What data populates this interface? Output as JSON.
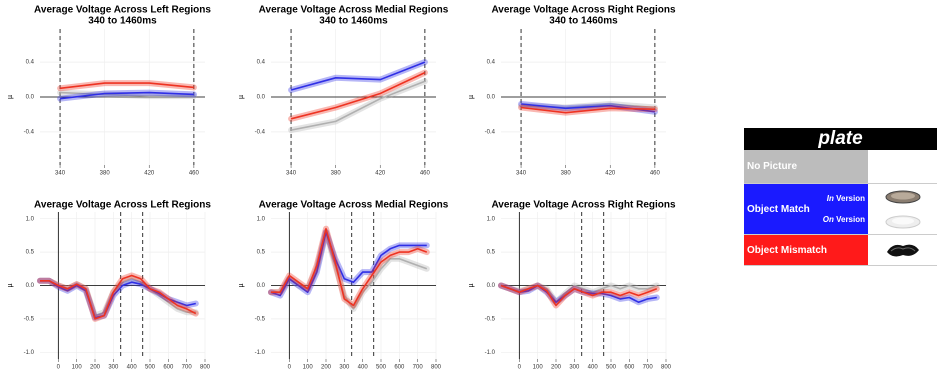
{
  "chart_data": [
    {
      "type": "line",
      "title": "Average Voltage Across Left Regions",
      "subtitle": "340 to 1460ms",
      "ylabel": "µ",
      "x": [
        340,
        380,
        420,
        460
      ],
      "xlim": [
        322,
        470
      ],
      "ylim": [
        -0.78,
        0.78
      ],
      "xticks": [
        340,
        380,
        420,
        460
      ],
      "yticks": [
        0.4,
        {
          "value": 0,
          "label": "0.0"
        },
        -0.4
      ],
      "grid": true,
      "hline": 0,
      "dashed_x": [
        340,
        460
      ],
      "series": [
        {
          "color": "#b0b0b0",
          "values": [
            0.05,
            0.03,
            0.01,
            0.01
          ]
        },
        {
          "color": "#2f2fe6",
          "values": [
            -0.02,
            0.04,
            0.05,
            0.03
          ]
        },
        {
          "color": "#ee3322",
          "values": [
            0.1,
            0.16,
            0.16,
            0.11
          ]
        }
      ]
    },
    {
      "type": "line",
      "title": "Average Voltage Across Medial Regions",
      "subtitle": "340 to 1460ms",
      "ylabel": "µ",
      "x": [
        340,
        380,
        420,
        460
      ],
      "xlim": [
        322,
        470
      ],
      "ylim": [
        -0.78,
        0.78
      ],
      "xticks": [
        340,
        380,
        420,
        460
      ],
      "yticks": [
        0.4,
        {
          "value": 0,
          "label": "0.0"
        },
        -0.4
      ],
      "grid": true,
      "hline": 0,
      "dashed_x": [
        340,
        460
      ],
      "series": [
        {
          "color": "#b0b0b0",
          "values": [
            -0.38,
            -0.28,
            -0.02,
            0.18
          ]
        },
        {
          "color": "#2f2fe6",
          "values": [
            0.08,
            0.22,
            0.2,
            0.4
          ]
        },
        {
          "color": "#ee3322",
          "values": [
            -0.25,
            -0.12,
            0.04,
            0.28
          ]
        }
      ]
    },
    {
      "type": "line",
      "title": "Average Voltage Across Right Regions",
      "subtitle": "340 to 1460ms",
      "ylabel": "µ",
      "x": [
        340,
        380,
        420,
        460
      ],
      "xlim": [
        322,
        470
      ],
      "ylim": [
        -0.78,
        0.78
      ],
      "xticks": [
        340,
        380,
        420,
        460
      ],
      "yticks": [
        0.4,
        {
          "value": 0,
          "label": "0.0"
        },
        -0.4
      ],
      "grid": true,
      "hline": 0,
      "dashed_x": [
        340,
        460
      ],
      "series": [
        {
          "color": "#b0b0b0",
          "values": [
            -0.1,
            -0.12,
            -0.08,
            -0.12
          ]
        },
        {
          "color": "#2f2fe6",
          "values": [
            -0.08,
            -0.13,
            -0.1,
            -0.17
          ]
        },
        {
          "color": "#ee3322",
          "values": [
            -0.12,
            -0.18,
            -0.13,
            -0.14
          ]
        }
      ]
    },
    {
      "type": "line",
      "title": "Average Voltage Across Left Regions",
      "ylabel": "µ",
      "x": [
        -100,
        -50,
        0,
        50,
        100,
        150,
        200,
        250,
        300,
        350,
        400,
        450,
        500,
        550,
        600,
        650,
        700,
        750
      ],
      "xlim": [
        -100,
        800
      ],
      "ylim": [
        -1.1,
        1.1
      ],
      "xticks": [
        0,
        100,
        200,
        300,
        400,
        500,
        600,
        700,
        800
      ],
      "yticks": [
        {
          "value": 1,
          "label": "1.0"
        },
        0.5,
        {
          "value": 0,
          "label": "0.0"
        },
        -0.5,
        {
          "value": -1,
          "label": "-1.0"
        }
      ],
      "grid": true,
      "hline": 0,
      "solid_x": [
        0
      ],
      "dashed_x": [
        340,
        460
      ],
      "series": [
        {
          "color": "#b0b0b0",
          "values": [
            0.07,
            0.07,
            0.0,
            -0.05,
            0.02,
            -0.05,
            -0.45,
            -0.4,
            -0.1,
            0.05,
            0.1,
            0.05,
            -0.05,
            -0.15,
            -0.25,
            -0.35,
            -0.4,
            -0.4
          ]
        },
        {
          "color": "#2f2fe6",
          "values": [
            0.07,
            0.07,
            -0.02,
            -0.08,
            0.0,
            -0.08,
            -0.48,
            -0.45,
            -0.15,
            0.0,
            0.05,
            0.02,
            -0.05,
            -0.12,
            -0.2,
            -0.25,
            -0.3,
            -0.27
          ]
        },
        {
          "color": "#ee3322",
          "values": [
            0.07,
            0.07,
            0.0,
            -0.05,
            0.02,
            -0.05,
            -0.5,
            -0.45,
            -0.1,
            0.1,
            0.15,
            0.1,
            -0.05,
            -0.1,
            -0.2,
            -0.3,
            -0.35,
            -0.42
          ]
        }
      ]
    },
    {
      "type": "line",
      "title": "Average Voltage Across Medial Regions",
      "ylabel": "µ",
      "x": [
        -100,
        -50,
        0,
        50,
        100,
        150,
        200,
        250,
        300,
        350,
        400,
        450,
        500,
        550,
        600,
        650,
        700,
        750
      ],
      "xlim": [
        -100,
        800
      ],
      "ylim": [
        -1.1,
        1.1
      ],
      "xticks": [
        0,
        100,
        200,
        300,
        400,
        500,
        600,
        700,
        800
      ],
      "yticks": [
        {
          "value": 1,
          "label": "1.0"
        },
        0.5,
        {
          "value": 0,
          "label": "0.0"
        },
        -0.5,
        {
          "value": -1,
          "label": "-1.0"
        }
      ],
      "grid": true,
      "hline": 0,
      "solid_x": [
        0
      ],
      "dashed_x": [
        340,
        460
      ],
      "series": [
        {
          "color": "#b0b0b0",
          "values": [
            -0.1,
            -0.1,
            0.1,
            0.0,
            -0.05,
            0.25,
            0.8,
            0.3,
            -0.15,
            -0.35,
            -0.1,
            0.05,
            0.25,
            0.4,
            0.4,
            0.35,
            0.3,
            0.25
          ]
        },
        {
          "color": "#2f2fe6",
          "values": [
            -0.1,
            -0.15,
            0.1,
            0.0,
            -0.1,
            0.2,
            0.8,
            0.4,
            0.1,
            0.05,
            0.2,
            0.2,
            0.45,
            0.55,
            0.6,
            0.6,
            0.6,
            0.6
          ]
        },
        {
          "color": "#ee3322",
          "values": [
            -0.1,
            -0.1,
            0.15,
            0.05,
            -0.05,
            0.3,
            0.85,
            0.35,
            -0.2,
            -0.3,
            -0.05,
            0.15,
            0.35,
            0.45,
            0.5,
            0.5,
            0.55,
            0.5
          ]
        }
      ]
    },
    {
      "type": "line",
      "title": "Average Voltage Across Right Regions",
      "ylabel": "µ",
      "x": [
        -100,
        -50,
        0,
        50,
        100,
        150,
        200,
        250,
        300,
        350,
        400,
        450,
        500,
        550,
        600,
        650,
        700,
        750
      ],
      "xlim": [
        -100,
        800
      ],
      "ylim": [
        -1.1,
        1.1
      ],
      "xticks": [
        0,
        100,
        200,
        300,
        400,
        500,
        600,
        700,
        800
      ],
      "yticks": [
        {
          "value": 1,
          "label": "1.0"
        },
        0.5,
        {
          "value": 0,
          "label": "0.0"
        },
        -0.5,
        {
          "value": -1,
          "label": "-1.0"
        }
      ],
      "grid": true,
      "hline": 0,
      "solid_x": [
        0
      ],
      "dashed_x": [
        340,
        460
      ],
      "series": [
        {
          "color": "#b0b0b0",
          "values": [
            0.0,
            -0.05,
            -0.08,
            -0.05,
            0.0,
            -0.05,
            -0.25,
            -0.12,
            0.0,
            -0.05,
            -0.1,
            -0.05,
            0.0,
            -0.05,
            0.0,
            -0.05,
            -0.05,
            0.0
          ]
        },
        {
          "color": "#2f2fe6",
          "values": [
            0.0,
            -0.05,
            -0.1,
            -0.08,
            0.0,
            -0.1,
            -0.25,
            -0.15,
            -0.05,
            -0.1,
            -0.12,
            -0.12,
            -0.15,
            -0.2,
            -0.18,
            -0.25,
            -0.2,
            -0.18
          ]
        },
        {
          "color": "#ee3322",
          "values": [
            0.0,
            -0.05,
            -0.1,
            -0.05,
            0.0,
            -0.08,
            -0.3,
            -0.15,
            -0.05,
            -0.1,
            -0.15,
            -0.1,
            -0.1,
            -0.15,
            -0.1,
            -0.15,
            -0.1,
            -0.05
          ]
        }
      ]
    }
  ],
  "legend": {
    "title": "plate",
    "rows": [
      {
        "label": "No Picture",
        "color": "#bcbcbc"
      },
      {
        "label": "Object Match",
        "color": "#1a1aff",
        "versions": [
          {
            "emph": "In",
            "text": "Version"
          },
          {
            "emph": "On",
            "text": "Version"
          }
        ]
      },
      {
        "label": "Object Mismatch",
        "color": "#ff1a1a"
      }
    ]
  }
}
